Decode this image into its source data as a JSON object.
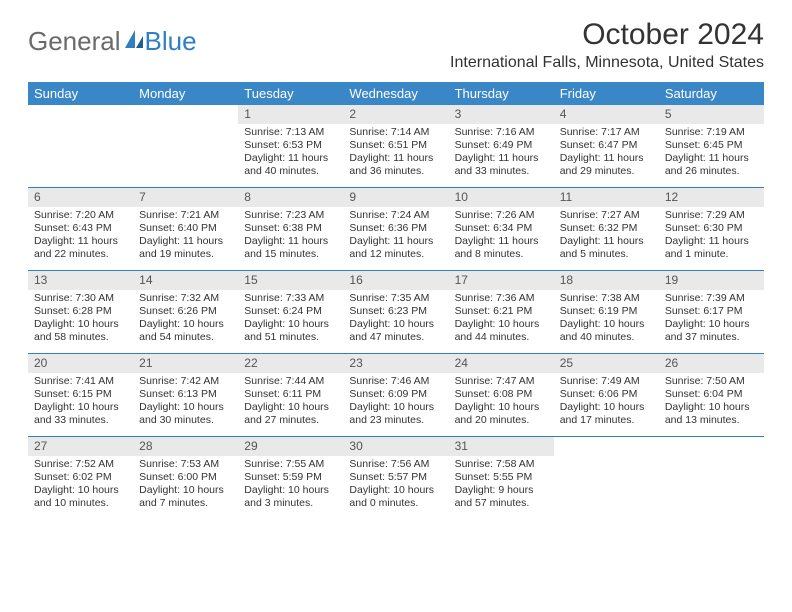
{
  "logo": {
    "text_general": "General",
    "text_blue": "Blue"
  },
  "title": "October 2024",
  "subtitle": "International Falls, Minnesota, United States",
  "styling": {
    "header_bg": "#3a87c7",
    "header_text": "#ffffff",
    "daynum_bg": "#e9e9e9",
    "row_border": "#2f7fc1",
    "body_text": "#333333",
    "page_bg": "#ffffff",
    "title_fontsize": 30,
    "subtitle_fontsize": 16,
    "header_fontsize": 13,
    "cell_fontsize": 10.5
  },
  "weekdays": [
    "Sunday",
    "Monday",
    "Tuesday",
    "Wednesday",
    "Thursday",
    "Friday",
    "Saturday"
  ],
  "rows": [
    [
      {
        "empty": true
      },
      {
        "empty": true
      },
      {
        "day": "1",
        "sunrise": "Sunrise: 7:13 AM",
        "sunset": "Sunset: 6:53 PM",
        "daylight": "Daylight: 11 hours and 40 minutes."
      },
      {
        "day": "2",
        "sunrise": "Sunrise: 7:14 AM",
        "sunset": "Sunset: 6:51 PM",
        "daylight": "Daylight: 11 hours and 36 minutes."
      },
      {
        "day": "3",
        "sunrise": "Sunrise: 7:16 AM",
        "sunset": "Sunset: 6:49 PM",
        "daylight": "Daylight: 11 hours and 33 minutes."
      },
      {
        "day": "4",
        "sunrise": "Sunrise: 7:17 AM",
        "sunset": "Sunset: 6:47 PM",
        "daylight": "Daylight: 11 hours and 29 minutes."
      },
      {
        "day": "5",
        "sunrise": "Sunrise: 7:19 AM",
        "sunset": "Sunset: 6:45 PM",
        "daylight": "Daylight: 11 hours and 26 minutes."
      }
    ],
    [
      {
        "day": "6",
        "sunrise": "Sunrise: 7:20 AM",
        "sunset": "Sunset: 6:43 PM",
        "daylight": "Daylight: 11 hours and 22 minutes."
      },
      {
        "day": "7",
        "sunrise": "Sunrise: 7:21 AM",
        "sunset": "Sunset: 6:40 PM",
        "daylight": "Daylight: 11 hours and 19 minutes."
      },
      {
        "day": "8",
        "sunrise": "Sunrise: 7:23 AM",
        "sunset": "Sunset: 6:38 PM",
        "daylight": "Daylight: 11 hours and 15 minutes."
      },
      {
        "day": "9",
        "sunrise": "Sunrise: 7:24 AM",
        "sunset": "Sunset: 6:36 PM",
        "daylight": "Daylight: 11 hours and 12 minutes."
      },
      {
        "day": "10",
        "sunrise": "Sunrise: 7:26 AM",
        "sunset": "Sunset: 6:34 PM",
        "daylight": "Daylight: 11 hours and 8 minutes."
      },
      {
        "day": "11",
        "sunrise": "Sunrise: 7:27 AM",
        "sunset": "Sunset: 6:32 PM",
        "daylight": "Daylight: 11 hours and 5 minutes."
      },
      {
        "day": "12",
        "sunrise": "Sunrise: 7:29 AM",
        "sunset": "Sunset: 6:30 PM",
        "daylight": "Daylight: 11 hours and 1 minute."
      }
    ],
    [
      {
        "day": "13",
        "sunrise": "Sunrise: 7:30 AM",
        "sunset": "Sunset: 6:28 PM",
        "daylight": "Daylight: 10 hours and 58 minutes."
      },
      {
        "day": "14",
        "sunrise": "Sunrise: 7:32 AM",
        "sunset": "Sunset: 6:26 PM",
        "daylight": "Daylight: 10 hours and 54 minutes."
      },
      {
        "day": "15",
        "sunrise": "Sunrise: 7:33 AM",
        "sunset": "Sunset: 6:24 PM",
        "daylight": "Daylight: 10 hours and 51 minutes."
      },
      {
        "day": "16",
        "sunrise": "Sunrise: 7:35 AM",
        "sunset": "Sunset: 6:23 PM",
        "daylight": "Daylight: 10 hours and 47 minutes."
      },
      {
        "day": "17",
        "sunrise": "Sunrise: 7:36 AM",
        "sunset": "Sunset: 6:21 PM",
        "daylight": "Daylight: 10 hours and 44 minutes."
      },
      {
        "day": "18",
        "sunrise": "Sunrise: 7:38 AM",
        "sunset": "Sunset: 6:19 PM",
        "daylight": "Daylight: 10 hours and 40 minutes."
      },
      {
        "day": "19",
        "sunrise": "Sunrise: 7:39 AM",
        "sunset": "Sunset: 6:17 PM",
        "daylight": "Daylight: 10 hours and 37 minutes."
      }
    ],
    [
      {
        "day": "20",
        "sunrise": "Sunrise: 7:41 AM",
        "sunset": "Sunset: 6:15 PM",
        "daylight": "Daylight: 10 hours and 33 minutes."
      },
      {
        "day": "21",
        "sunrise": "Sunrise: 7:42 AM",
        "sunset": "Sunset: 6:13 PM",
        "daylight": "Daylight: 10 hours and 30 minutes."
      },
      {
        "day": "22",
        "sunrise": "Sunrise: 7:44 AM",
        "sunset": "Sunset: 6:11 PM",
        "daylight": "Daylight: 10 hours and 27 minutes."
      },
      {
        "day": "23",
        "sunrise": "Sunrise: 7:46 AM",
        "sunset": "Sunset: 6:09 PM",
        "daylight": "Daylight: 10 hours and 23 minutes."
      },
      {
        "day": "24",
        "sunrise": "Sunrise: 7:47 AM",
        "sunset": "Sunset: 6:08 PM",
        "daylight": "Daylight: 10 hours and 20 minutes."
      },
      {
        "day": "25",
        "sunrise": "Sunrise: 7:49 AM",
        "sunset": "Sunset: 6:06 PM",
        "daylight": "Daylight: 10 hours and 17 minutes."
      },
      {
        "day": "26",
        "sunrise": "Sunrise: 7:50 AM",
        "sunset": "Sunset: 6:04 PM",
        "daylight": "Daylight: 10 hours and 13 minutes."
      }
    ],
    [
      {
        "day": "27",
        "sunrise": "Sunrise: 7:52 AM",
        "sunset": "Sunset: 6:02 PM",
        "daylight": "Daylight: 10 hours and 10 minutes."
      },
      {
        "day": "28",
        "sunrise": "Sunrise: 7:53 AM",
        "sunset": "Sunset: 6:00 PM",
        "daylight": "Daylight: 10 hours and 7 minutes."
      },
      {
        "day": "29",
        "sunrise": "Sunrise: 7:55 AM",
        "sunset": "Sunset: 5:59 PM",
        "daylight": "Daylight: 10 hours and 3 minutes."
      },
      {
        "day": "30",
        "sunrise": "Sunrise: 7:56 AM",
        "sunset": "Sunset: 5:57 PM",
        "daylight": "Daylight: 10 hours and 0 minutes."
      },
      {
        "day": "31",
        "sunrise": "Sunrise: 7:58 AM",
        "sunset": "Sunset: 5:55 PM",
        "daylight": "Daylight: 9 hours and 57 minutes."
      },
      {
        "empty": true
      },
      {
        "empty": true
      }
    ]
  ]
}
